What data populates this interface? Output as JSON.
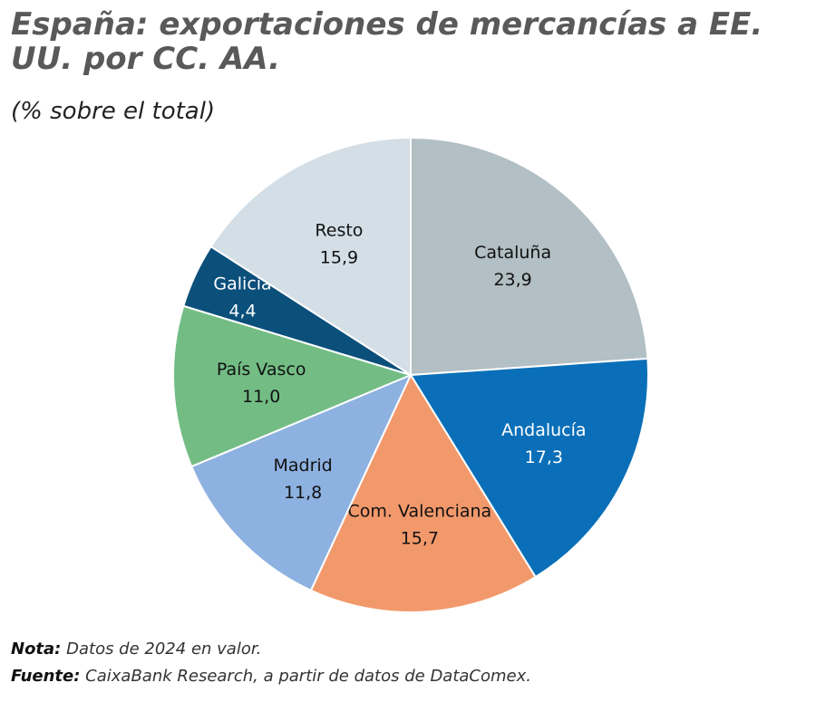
{
  "chart_data": {
    "type": "pie",
    "title": "España: exportaciones de mercancías a EE. UU. por CC. AA.",
    "subtitle": "(% sobre el total)",
    "categories": [
      "Cataluña",
      "Andalucía",
      "Com. Valenciana",
      "Madrid",
      "País Vasco",
      "Galicia",
      "Resto"
    ],
    "values": [
      23.9,
      17.3,
      15.7,
      11.8,
      11.0,
      4.4,
      15.9
    ],
    "value_labels": [
      "23,9",
      "17,3",
      "15,7",
      "11,8",
      "11,0",
      "4,4",
      "15,9"
    ],
    "colors": [
      "#b2bfc4",
      "#0a6fb8",
      "#f2996c",
      "#8db1e0",
      "#73bd85",
      "#0b4f7b",
      "#d3dee6"
    ],
    "notes": [
      {
        "label": "Nota:",
        "text": "Datos de 2024 en valor."
      },
      {
        "label": "Fuente:",
        "text": "CaixaBank Research, a partir de datos de DataComex."
      }
    ]
  }
}
